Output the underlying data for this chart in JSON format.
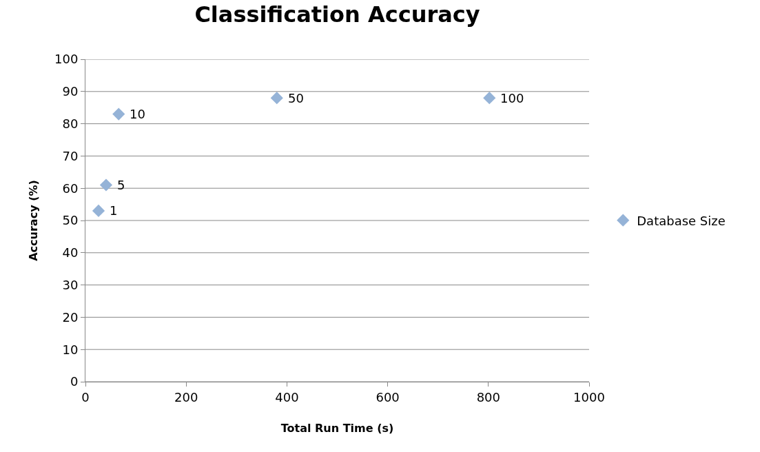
{
  "chart_data": {
    "type": "scatter",
    "title": "Classification Accuracy",
    "xlabel": "Total Run Time (s)",
    "ylabel": "Accuracy (%)",
    "x": [
      26,
      41,
      66,
      380,
      802
    ],
    "series": [
      {
        "name": "Database Size",
        "color": "#95b3d7",
        "values": [
          53,
          61,
          83,
          88,
          88
        ]
      }
    ],
    "annotations": [
      {
        "text": "1",
        "x": 26,
        "y": 53
      },
      {
        "text": "5",
        "x": 41,
        "y": 61
      },
      {
        "text": "10",
        "x": 66,
        "y": 83
      },
      {
        "text": "50",
        "x": 380,
        "y": 88
      },
      {
        "text": "100",
        "x": 802,
        "y": 88
      }
    ],
    "xlim": [
      0,
      1000
    ],
    "xticks": [
      0,
      200,
      400,
      600,
      800,
      1000
    ],
    "ylim": [
      0,
      100
    ],
    "yticks": [
      0,
      10,
      20,
      30,
      40,
      50,
      60,
      70,
      80,
      90,
      100
    ],
    "grid": "y",
    "legend": "right",
    "marker": "diamond"
  }
}
